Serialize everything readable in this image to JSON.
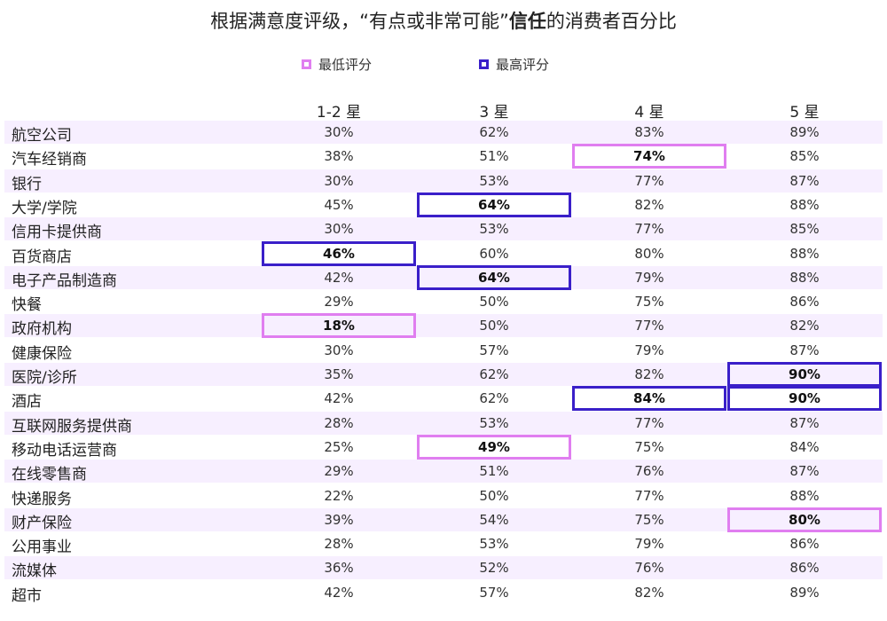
{
  "title": {
    "prefix": "根据满意度评级，“有点或非常可能”",
    "bold": "信任",
    "suffix": "的消费者百分比"
  },
  "legend": [
    {
      "label": "最低评分",
      "color": "#e07ef0"
    },
    {
      "label": "最高评分",
      "color": "#3a1fc9"
    }
  ],
  "chart_data": {
    "type": "table",
    "columns": [
      "1-2 星",
      "3 星",
      "4 星",
      "5 星"
    ],
    "rows": [
      {
        "label": "航空公司",
        "values": [
          "30%",
          "62%",
          "83%",
          "89%"
        ],
        "highlight": [
          null,
          null,
          null,
          null
        ]
      },
      {
        "label": "汽车经销商",
        "values": [
          "38%",
          "51%",
          "74%",
          "85%"
        ],
        "highlight": [
          null,
          null,
          "low",
          null
        ]
      },
      {
        "label": "银行",
        "values": [
          "30%",
          "53%",
          "77%",
          "87%"
        ],
        "highlight": [
          null,
          null,
          null,
          null
        ]
      },
      {
        "label": "大学/学院",
        "values": [
          "45%",
          "64%",
          "82%",
          "88%"
        ],
        "highlight": [
          null,
          "high",
          null,
          null
        ]
      },
      {
        "label": "信用卡提供商",
        "values": [
          "30%",
          "53%",
          "77%",
          "85%"
        ],
        "highlight": [
          null,
          null,
          null,
          null
        ]
      },
      {
        "label": "百货商店",
        "values": [
          "46%",
          "60%",
          "80%",
          "88%"
        ],
        "highlight": [
          "high",
          null,
          null,
          null
        ]
      },
      {
        "label": "电子产品制造商",
        "values": [
          "42%",
          "64%",
          "79%",
          "88%"
        ],
        "highlight": [
          null,
          "high",
          null,
          null
        ]
      },
      {
        "label": "快餐",
        "values": [
          "29%",
          "50%",
          "75%",
          "86%"
        ],
        "highlight": [
          null,
          null,
          null,
          null
        ]
      },
      {
        "label": "政府机构",
        "values": [
          "18%",
          "50%",
          "77%",
          "82%"
        ],
        "highlight": [
          "low",
          null,
          null,
          null
        ]
      },
      {
        "label": "健康保险",
        "values": [
          "30%",
          "57%",
          "79%",
          "87%"
        ],
        "highlight": [
          null,
          null,
          null,
          null
        ]
      },
      {
        "label": "医院/诊所",
        "values": [
          "35%",
          "62%",
          "82%",
          "90%"
        ],
        "highlight": [
          null,
          null,
          null,
          "high"
        ]
      },
      {
        "label": "酒店",
        "values": [
          "42%",
          "62%",
          "84%",
          "90%"
        ],
        "highlight": [
          null,
          null,
          "high",
          "high"
        ]
      },
      {
        "label": "互联网服务提供商",
        "values": [
          "28%",
          "53%",
          "77%",
          "87%"
        ],
        "highlight": [
          null,
          null,
          null,
          null
        ]
      },
      {
        "label": "移动电话运营商",
        "values": [
          "25%",
          "49%",
          "75%",
          "84%"
        ],
        "highlight": [
          null,
          "low",
          null,
          null
        ]
      },
      {
        "label": "在线零售商",
        "values": [
          "29%",
          "51%",
          "76%",
          "87%"
        ],
        "highlight": [
          null,
          null,
          null,
          null
        ]
      },
      {
        "label": "快递服务",
        "values": [
          "22%",
          "50%",
          "77%",
          "88%"
        ],
        "highlight": [
          null,
          null,
          null,
          null
        ]
      },
      {
        "label": "财产保险",
        "values": [
          "39%",
          "54%",
          "75%",
          "80%"
        ],
        "highlight": [
          null,
          null,
          null,
          "low"
        ]
      },
      {
        "label": "公用事业",
        "values": [
          "28%",
          "53%",
          "79%",
          "86%"
        ],
        "highlight": [
          null,
          null,
          null,
          null
        ]
      },
      {
        "label": "流媒体",
        "values": [
          "36%",
          "52%",
          "76%",
          "86%"
        ],
        "highlight": [
          null,
          null,
          null,
          null
        ]
      },
      {
        "label": "超市",
        "values": [
          "42%",
          "57%",
          "82%",
          "89%"
        ],
        "highlight": [
          null,
          null,
          null,
          null
        ]
      }
    ]
  }
}
